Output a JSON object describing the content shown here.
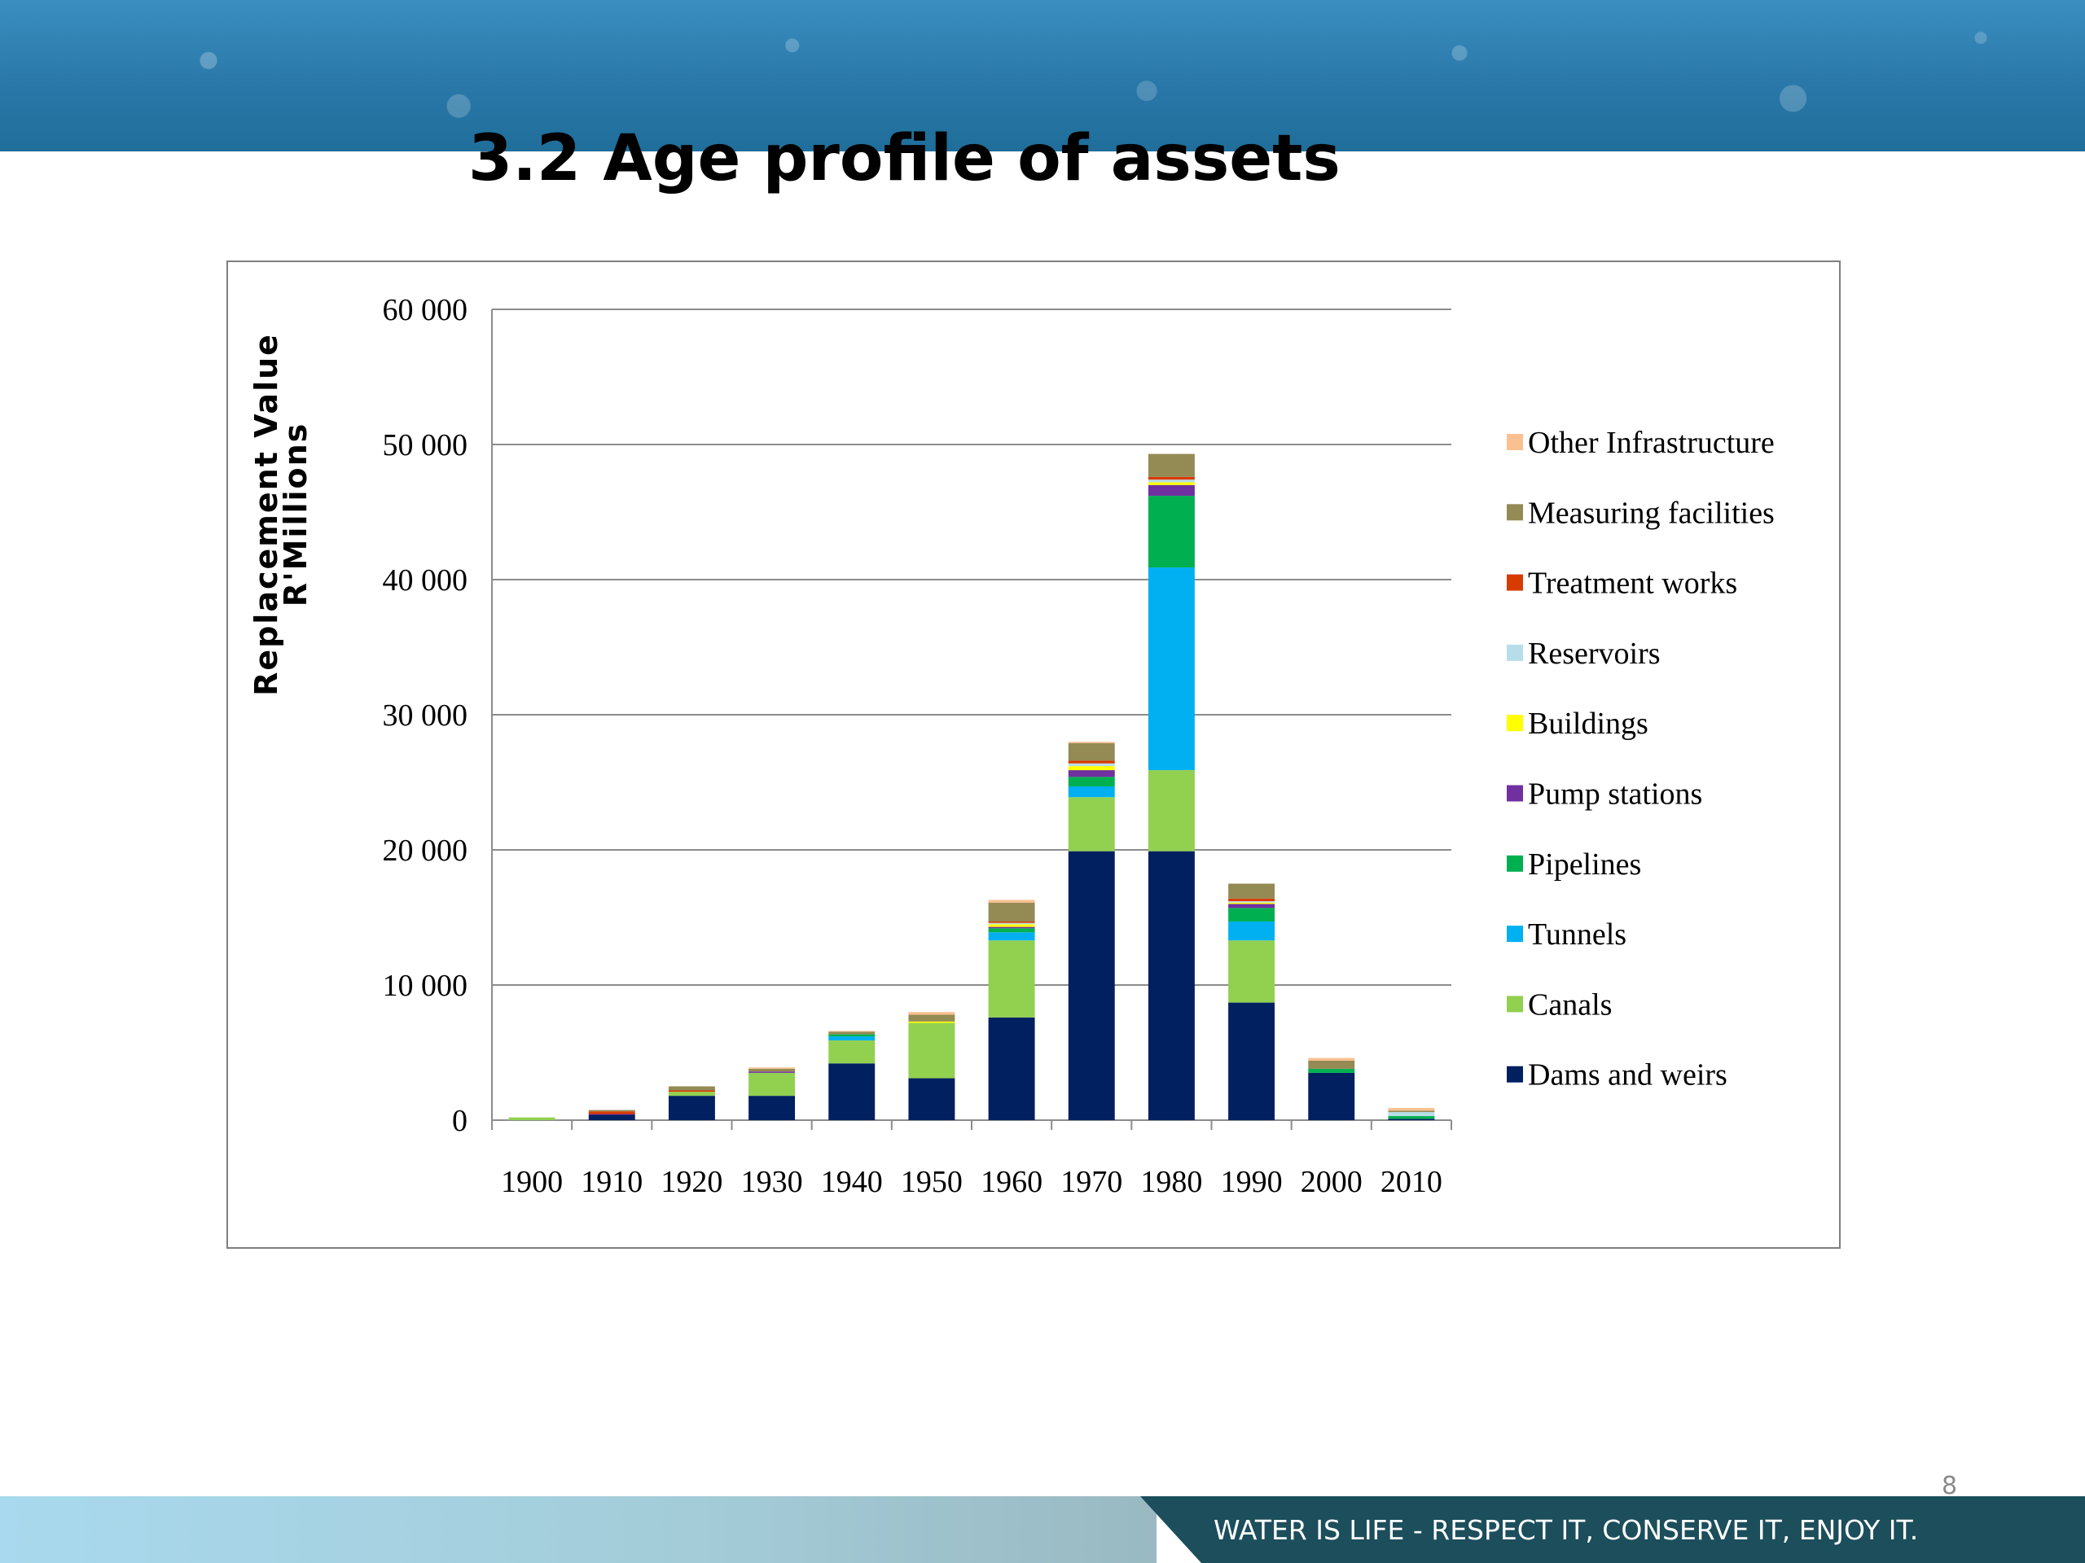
{
  "slide": {
    "title": "3.2 Age profile of assets",
    "footer_slogan": "WATER IS LIFE - RESPECT IT, CONSERVE IT, ENJOY IT.",
    "page_number": "8"
  },
  "chart_data": {
    "type": "bar",
    "stacked": true,
    "title": "",
    "xlabel": "",
    "ylabel_lines": [
      "Replacement Value",
      "R'Millions"
    ],
    "ylim": [
      0,
      60000
    ],
    "yticks": [
      0,
      10000,
      20000,
      30000,
      40000,
      50000,
      60000
    ],
    "ytick_labels": [
      "0",
      "10 000",
      "20 000",
      "30 000",
      "40 000",
      "50 000",
      "60 000"
    ],
    "grid": true,
    "legend_position": "right",
    "categories": [
      "1900",
      "1910",
      "1920",
      "1930",
      "1940",
      "1950",
      "1960",
      "1970",
      "1980",
      "1990",
      "2000",
      "2010"
    ],
    "series": [
      {
        "name": "Dams and weirs",
        "color": "#002060",
        "values": [
          0,
          400,
          1800,
          1800,
          4200,
          3100,
          7600,
          19900,
          19900,
          8700,
          3500,
          100
        ]
      },
      {
        "name": "Canals",
        "color": "#92d050",
        "values": [
          200,
          0,
          300,
          1700,
          1700,
          4100,
          5700,
          4000,
          6000,
          4600,
          0,
          0
        ]
      },
      {
        "name": "Tunnels",
        "color": "#00b0f0",
        "values": [
          0,
          0,
          0,
          0,
          300,
          0,
          600,
          800,
          15000,
          1400,
          0,
          0
        ]
      },
      {
        "name": "Pipelines",
        "color": "#00b050",
        "values": [
          0,
          0,
          0,
          0,
          150,
          0,
          300,
          700,
          5300,
          1000,
          300,
          200
        ]
      },
      {
        "name": "Pump stations",
        "color": "#7030a0",
        "values": [
          0,
          50,
          0,
          100,
          0,
          0,
          100,
          500,
          800,
          300,
          0,
          0
        ]
      },
      {
        "name": "Buildings",
        "color": "#ffff00",
        "values": [
          0,
          0,
          0,
          0,
          0,
          100,
          200,
          300,
          200,
          100,
          0,
          0
        ]
      },
      {
        "name": "Reservoirs",
        "color": "#b7dee8",
        "values": [
          0,
          0,
          0,
          0,
          0,
          0,
          100,
          200,
          200,
          100,
          0,
          300
        ]
      },
      {
        "name": "Treatment works",
        "color": "#d83b01",
        "values": [
          0,
          200,
          100,
          0,
          0,
          0,
          100,
          200,
          200,
          200,
          0,
          0
        ]
      },
      {
        "name": "Measuring facilities",
        "color": "#948a54",
        "values": [
          0,
          100,
          300,
          200,
          200,
          500,
          1400,
          1300,
          1700,
          1100,
          600,
          100
        ]
      },
      {
        "name": "Other Infrastructure",
        "color": "#fac090",
        "values": [
          0,
          0,
          0,
          100,
          50,
          200,
          200,
          100,
          0,
          0,
          200,
          200
        ]
      }
    ]
  }
}
